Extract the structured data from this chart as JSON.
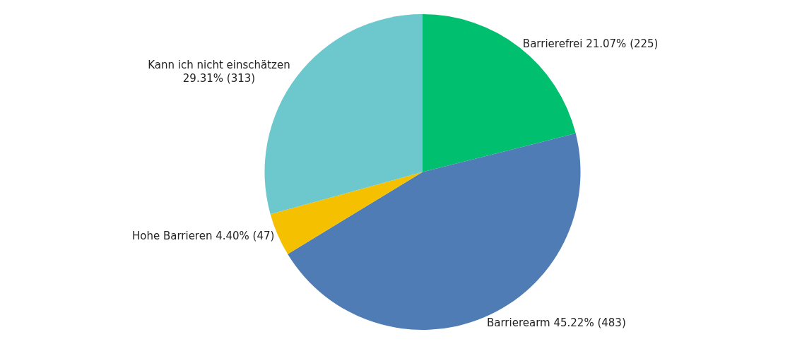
{
  "chart_data": {
    "type": "pie",
    "categories": [
      "Barrierefrei",
      "Barrierearm",
      "Hohe Barrieren",
      "Kann ich nicht einschätzen"
    ],
    "values": [
      225,
      483,
      47,
      313
    ],
    "value_labels": [
      "21.07% (225)",
      "45.22% (483)",
      "4.40% (47)",
      "29.31% (313)"
    ],
    "colors": [
      "#00bf6f",
      "#4f7cb5",
      "#f5c000",
      "#6cc8cc"
    ],
    "legend": false
  }
}
